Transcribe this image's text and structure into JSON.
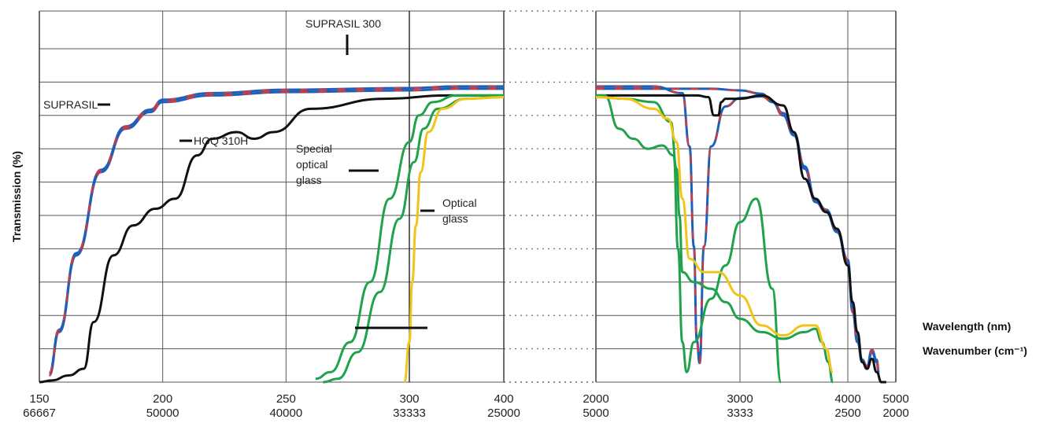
{
  "chart_data": {
    "type": "line",
    "title": "",
    "ylabel": "Transmission (%)",
    "xlabel_lines": [
      "Wavelength  (nm)",
      "Wavenumber (cm⁻¹)"
    ],
    "ylim": [
      0,
      100
    ],
    "y_gridlines": 10,
    "grid": true,
    "panels": [
      {
        "name": "UV",
        "xlim": [
          150,
          400
        ],
        "ticks": [
          {
            "nm": "150",
            "cm": "66667",
            "v": 150
          },
          {
            "nm": "200",
            "cm": "50000",
            "v": 200
          },
          {
            "nm": "250",
            "cm": "40000",
            "v": 250
          },
          {
            "nm": "300",
            "cm": "33333",
            "v": 300
          },
          {
            "nm": "400",
            "cm": "25000",
            "v": 400
          }
        ]
      },
      {
        "name": "IR",
        "xlim": [
          2000,
          5000
        ],
        "ticks": [
          {
            "nm": "2000",
            "cm": "5000",
            "v": 2000
          },
          {
            "nm": "3000",
            "cm": "3333",
            "v": 3000
          },
          {
            "nm": "4000",
            "cm": "2500",
            "v": 4000
          },
          {
            "nm": "5000",
            "cm": "2000",
            "v": 5000
          }
        ]
      }
    ],
    "annotations": [
      {
        "id": "suprasil300",
        "lines": [
          "SUPRASIL 300"
        ]
      },
      {
        "id": "suprasil",
        "lines": [
          "SUPRASIL"
        ]
      },
      {
        "id": "hoq",
        "lines": [
          "HOQ 310H"
        ]
      },
      {
        "id": "special",
        "lines": [
          "Special",
          "optical",
          "glass"
        ]
      },
      {
        "id": "optical",
        "lines": [
          "Optical",
          "glass"
        ]
      }
    ],
    "series": [
      {
        "id": "suprasil",
        "color": "#1f5fb8",
        "uv": [
          [
            154,
            2
          ],
          [
            158,
            15
          ],
          [
            165,
            38
          ],
          [
            175,
            63
          ],
          [
            185,
            76
          ],
          [
            195,
            81
          ],
          [
            200,
            84
          ],
          [
            220,
            86
          ],
          [
            250,
            87
          ],
          [
            300,
            87.5
          ],
          [
            350,
            88
          ],
          [
            400,
            88
          ]
        ],
        "ir": [
          [
            2000,
            88
          ],
          [
            2800,
            88
          ],
          [
            3000,
            87.5
          ],
          [
            3200,
            86.5
          ],
          [
            3300,
            84
          ],
          [
            3400,
            80
          ],
          [
            3500,
            74
          ],
          [
            3600,
            64
          ],
          [
            3700,
            54
          ],
          [
            3800,
            51
          ],
          [
            3900,
            45
          ],
          [
            4000,
            36
          ],
          [
            4100,
            21
          ],
          [
            4200,
            12
          ],
          [
            4300,
            6
          ],
          [
            4400,
            4
          ],
          [
            4500,
            9
          ],
          [
            4600,
            6
          ],
          [
            4650,
            2
          ]
        ]
      },
      {
        "id": "suprasil300",
        "color": "#1f5fb8",
        "uv": [
          [
            154,
            2
          ],
          [
            158,
            15
          ],
          [
            165,
            38
          ],
          [
            175,
            63
          ],
          [
            185,
            76
          ],
          [
            195,
            81
          ],
          [
            200,
            84
          ],
          [
            220,
            86
          ],
          [
            250,
            87
          ],
          [
            300,
            87.5
          ],
          [
            350,
            88
          ],
          [
            400,
            88
          ]
        ],
        "ir": [
          [
            2000,
            88
          ],
          [
            2400,
            88
          ],
          [
            2600,
            86
          ],
          [
            2650,
            70
          ],
          [
            2680,
            40
          ],
          [
            2700,
            12
          ],
          [
            2720,
            5
          ],
          [
            2750,
            40
          ],
          [
            2800,
            70
          ],
          [
            2900,
            82
          ],
          [
            3000,
            84.5
          ],
          [
            3200,
            85
          ],
          [
            3300,
            83.5
          ],
          [
            3400,
            80
          ],
          [
            3500,
            74
          ],
          [
            3600,
            64
          ],
          [
            3700,
            54
          ],
          [
            3800,
            51
          ],
          [
            3900,
            45
          ],
          [
            4000,
            36
          ],
          [
            4100,
            21
          ],
          [
            4200,
            12
          ],
          [
            4300,
            6
          ],
          [
            4400,
            4
          ],
          [
            4500,
            9
          ],
          [
            4600,
            6
          ],
          [
            4650,
            2
          ]
        ]
      },
      {
        "id": "hoq310h",
        "color": "#111111",
        "uv": [
          [
            150,
            0
          ],
          [
            155,
            0.5
          ],
          [
            162,
            2
          ],
          [
            168,
            4
          ],
          [
            172,
            18
          ],
          [
            180,
            38
          ],
          [
            188,
            47
          ],
          [
            197,
            52
          ],
          [
            205,
            55
          ],
          [
            214,
            68
          ],
          [
            220,
            73
          ],
          [
            230,
            75
          ],
          [
            237,
            73
          ],
          [
            245,
            75
          ],
          [
            260,
            82
          ],
          [
            290,
            85
          ],
          [
            340,
            86
          ],
          [
            400,
            86
          ]
        ],
        "ir": [
          [
            2000,
            86
          ],
          [
            2500,
            86
          ],
          [
            2700,
            86
          ],
          [
            2780,
            85.5
          ],
          [
            2820,
            80
          ],
          [
            2850,
            80
          ],
          [
            2870,
            84
          ],
          [
            2900,
            85
          ],
          [
            3000,
            85
          ],
          [
            3200,
            86
          ],
          [
            3400,
            83
          ],
          [
            3500,
            75
          ],
          [
            3600,
            61
          ],
          [
            3700,
            55
          ],
          [
            3800,
            51
          ],
          [
            3900,
            46
          ],
          [
            4000,
            35
          ],
          [
            4100,
            24
          ],
          [
            4200,
            15
          ],
          [
            4300,
            6
          ],
          [
            4400,
            4
          ],
          [
            4500,
            7
          ],
          [
            4600,
            3
          ],
          [
            4700,
            0
          ],
          [
            4800,
            0
          ]
        ]
      },
      {
        "id": "special_glass_1",
        "color": "#1fa34a",
        "uv": [
          [
            262,
            1
          ],
          [
            268,
            3
          ],
          [
            276,
            12
          ],
          [
            284,
            30
          ],
          [
            292,
            55
          ],
          [
            300,
            72
          ],
          [
            310,
            80
          ],
          [
            325,
            84
          ],
          [
            350,
            86
          ],
          [
            400,
            86
          ]
        ],
        "ir": [
          [
            2000,
            86
          ],
          [
            2060,
            86
          ],
          [
            2160,
            76
          ],
          [
            2260,
            73
          ],
          [
            2360,
            70
          ],
          [
            2460,
            71
          ],
          [
            2540,
            68
          ],
          [
            2570,
            40
          ],
          [
            2600,
            12
          ],
          [
            2630,
            3
          ],
          [
            2680,
            12
          ],
          [
            2800,
            25
          ],
          [
            2900,
            35
          ],
          [
            3000,
            48
          ],
          [
            3150,
            55
          ],
          [
            3300,
            28
          ],
          [
            3380,
            0
          ]
        ]
      },
      {
        "id": "special_glass_2",
        "color": "#1fa34a",
        "uv": [
          [
            265,
            0
          ],
          [
            271,
            1
          ],
          [
            279,
            9
          ],
          [
            288,
            27
          ],
          [
            296,
            49
          ],
          [
            305,
            66
          ],
          [
            315,
            76
          ],
          [
            330,
            82
          ],
          [
            360,
            85
          ],
          [
            400,
            85.5
          ]
        ],
        "ir": [
          [
            2000,
            85.5
          ],
          [
            2200,
            85
          ],
          [
            2400,
            84
          ],
          [
            2520,
            78
          ],
          [
            2560,
            64
          ],
          [
            2580,
            50
          ],
          [
            2600,
            33
          ],
          [
            2680,
            30
          ],
          [
            2800,
            28
          ],
          [
            2900,
            24
          ],
          [
            3000,
            19
          ],
          [
            3200,
            15
          ],
          [
            3400,
            13
          ],
          [
            3600,
            15
          ],
          [
            3700,
            16
          ],
          [
            3760,
            12
          ],
          [
            3820,
            6
          ],
          [
            3860,
            0
          ]
        ]
      },
      {
        "id": "optical_glass",
        "color": "#f2c418",
        "uv": [
          [
            298,
            0
          ],
          [
            300,
            12
          ],
          [
            303,
            30
          ],
          [
            307,
            47
          ],
          [
            312,
            63
          ],
          [
            320,
            75
          ],
          [
            335,
            82
          ],
          [
            360,
            85
          ],
          [
            400,
            85.5
          ]
        ],
        "ir": [
          [
            2000,
            85.5
          ],
          [
            2200,
            85
          ],
          [
            2400,
            82
          ],
          [
            2500,
            79
          ],
          [
            2560,
            72
          ],
          [
            2600,
            55
          ],
          [
            2650,
            37
          ],
          [
            2750,
            33
          ],
          [
            2850,
            33
          ],
          [
            3000,
            26
          ],
          [
            3200,
            17
          ],
          [
            3400,
            14
          ],
          [
            3600,
            17
          ],
          [
            3700,
            17
          ],
          [
            3800,
            10
          ],
          [
            3860,
            3
          ]
        ]
      }
    ]
  }
}
